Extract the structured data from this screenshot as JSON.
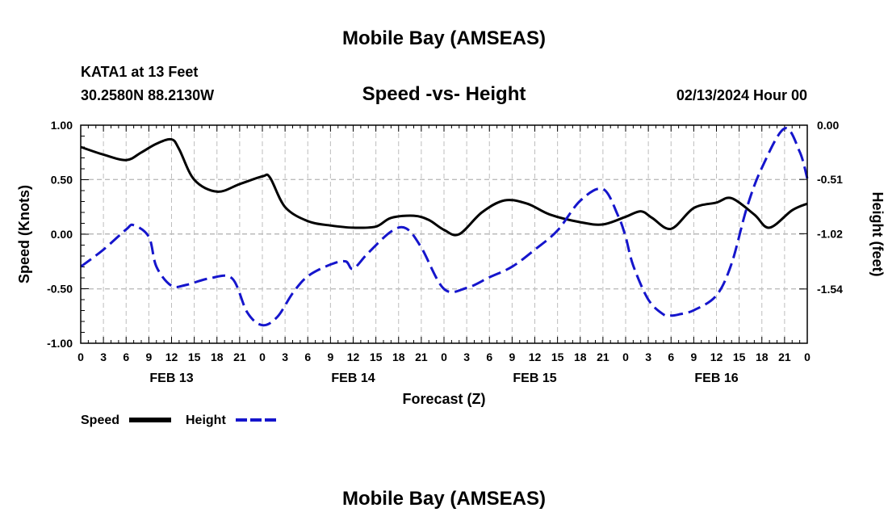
{
  "header": {
    "title": "Mobile Bay (AMSEAS)",
    "station": "KATA1 at 13 Feet",
    "location": "30.2580N  88.2130W",
    "subtitle": "Speed -vs- Height",
    "run_time": "02/13/2024 Hour 00",
    "footer_title": "Mobile Bay (AMSEAS)"
  },
  "colors": {
    "speed": "#000000",
    "height": "#1515cc"
  },
  "chart_data": {
    "type": "line",
    "title": "Speed -vs- Height",
    "xlabel": "Forecast (Z)",
    "ylabel": "Speed (Knots)",
    "y2label": "Height (feet)",
    "x_hours": [
      0,
      3,
      6,
      9,
      12,
      15,
      18,
      21,
      24,
      27,
      30,
      33,
      36,
      39,
      42,
      45,
      48,
      51,
      54,
      57,
      60,
      63,
      66,
      69,
      72,
      75,
      78,
      81,
      84,
      87,
      90,
      93,
      96
    ],
    "x_tick_labels": [
      "0",
      "3",
      "6",
      "9",
      "12",
      "15",
      "18",
      "21",
      "0",
      "3",
      "6",
      "9",
      "12",
      "15",
      "18",
      "21",
      "0",
      "3",
      "6",
      "9",
      "12",
      "15",
      "18",
      "21",
      "0",
      "3",
      "6",
      "9",
      "12",
      "15",
      "18",
      "21",
      "0"
    ],
    "date_labels": [
      {
        "label": "FEB 13",
        "hour": 12
      },
      {
        "label": "FEB 14",
        "hour": 36
      },
      {
        "label": "FEB 15",
        "hour": 60
      },
      {
        "label": "FEB 16",
        "hour": 84
      }
    ],
    "ylim": [
      -1.0,
      1.0
    ],
    "yticks": [
      "1.00",
      "0.50",
      "0.00",
      "-0.50",
      "-1.00"
    ],
    "y2lim": [
      -2.05,
      0.0
    ],
    "y2ticks": [
      {
        "label": "0.00",
        "value": 0.0
      },
      {
        "label": "-0.51",
        "value": -0.51
      },
      {
        "label": "-1.02",
        "value": -1.02
      },
      {
        "label": "-1.54",
        "value": -1.54
      }
    ],
    "grid": true,
    "legend": "bottom-left",
    "series": [
      {
        "name": "Speed",
        "axis": "left",
        "x": [
          0,
          3,
          6,
          8,
          10,
          12,
          13,
          15,
          18,
          21,
          24,
          25,
          27,
          30,
          33,
          36,
          39,
          41,
          44,
          46,
          48,
          50,
          53,
          56,
          59,
          62,
          66,
          69,
          72,
          74,
          75.5,
          78,
          81,
          84,
          86,
          89,
          91,
          94,
          96
        ],
        "values": [
          0.8,
          0.73,
          0.68,
          0.75,
          0.83,
          0.87,
          0.78,
          0.5,
          0.39,
          0.46,
          0.53,
          0.52,
          0.25,
          0.12,
          0.08,
          0.06,
          0.07,
          0.15,
          0.17,
          0.13,
          0.04,
          0.0,
          0.2,
          0.31,
          0.28,
          0.18,
          0.11,
          0.09,
          0.16,
          0.21,
          0.15,
          0.05,
          0.24,
          0.29,
          0.33,
          0.18,
          0.06,
          0.22,
          0.28
        ]
      },
      {
        "name": "Height",
        "axis": "right",
        "x": [
          0,
          3,
          6,
          7,
          9,
          10,
          12,
          14,
          17,
          20,
          22,
          24,
          26,
          28,
          30,
          33,
          35,
          36,
          38,
          41,
          43,
          45,
          48,
          51,
          54,
          57,
          60,
          63,
          66,
          69,
          71,
          72,
          73,
          75,
          77,
          78,
          79,
          81,
          84,
          86,
          88,
          90,
          93,
          95,
          96
        ],
        "values": [
          -1.33,
          -1.17,
          -0.98,
          -0.94,
          -1.05,
          -1.33,
          -1.51,
          -1.5,
          -1.44,
          -1.44,
          -1.76,
          -1.88,
          -1.8,
          -1.58,
          -1.42,
          -1.31,
          -1.28,
          -1.35,
          -1.2,
          -1.0,
          -0.97,
          -1.15,
          -1.54,
          -1.53,
          -1.43,
          -1.33,
          -1.17,
          -0.99,
          -0.71,
          -0.6,
          -0.85,
          -1.05,
          -1.32,
          -1.64,
          -1.78,
          -1.79,
          -1.78,
          -1.74,
          -1.6,
          -1.3,
          -0.78,
          -0.4,
          -0.03,
          -0.25,
          -0.5
        ]
      }
    ]
  }
}
